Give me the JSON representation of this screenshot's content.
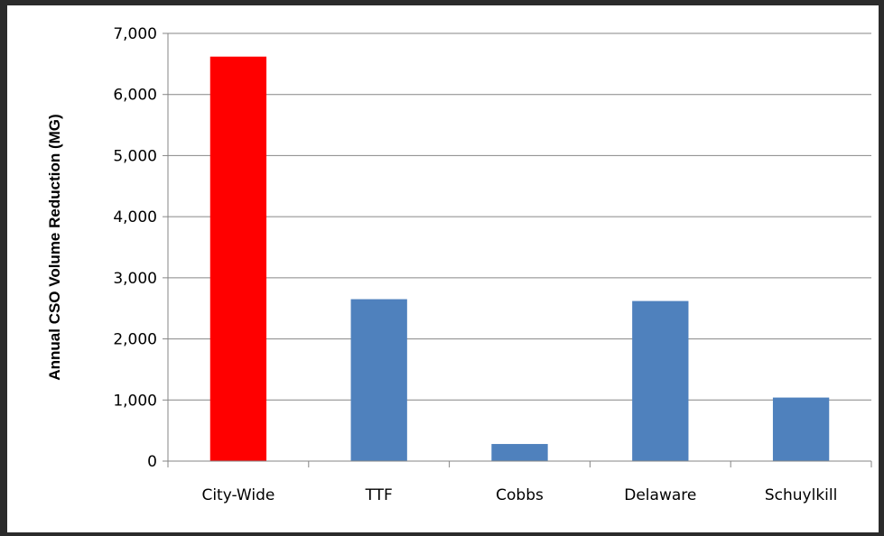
{
  "chart_data": {
    "type": "bar",
    "title": "",
    "xlabel": "",
    "ylabel": "Annual CSO Volume Reduction (MG)",
    "categories": [
      "City-Wide",
      "TTF",
      "Cobbs",
      "Delaware",
      "Schuylkill"
    ],
    "values": [
      6620,
      2650,
      280,
      2620,
      1040
    ],
    "bar_colors": [
      "#ff0000",
      "#4f81bd",
      "#4f81bd",
      "#4f81bd",
      "#4f81bd"
    ],
    "ylim": [
      0,
      7000
    ],
    "yticks": [
      0,
      1000,
      2000,
      3000,
      4000,
      5000,
      6000,
      7000
    ],
    "ytick_labels": [
      "0",
      "1,000",
      "2,000",
      "3,000",
      "4,000",
      "5,000",
      "6,000",
      "7,000"
    ],
    "grid": true,
    "gridline_color": "#868686",
    "legend": "none"
  }
}
